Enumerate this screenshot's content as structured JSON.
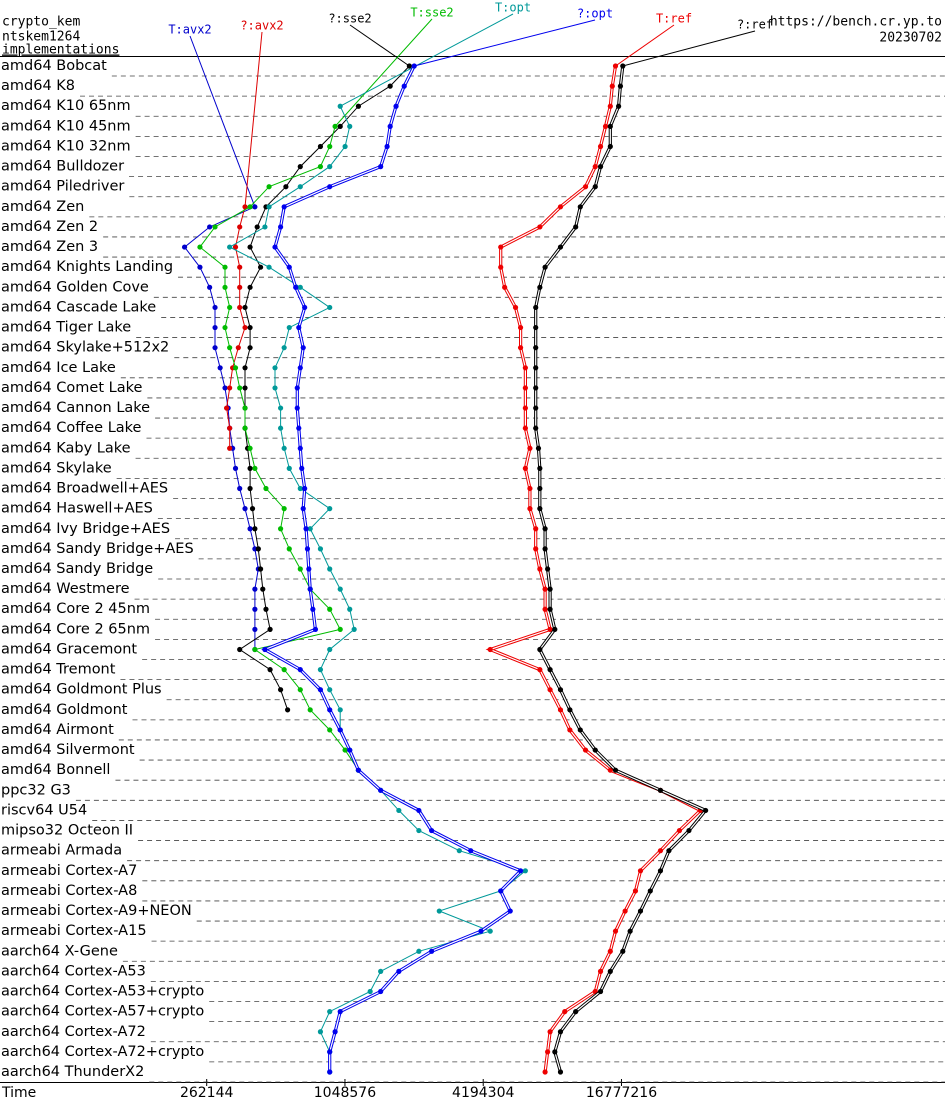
{
  "chart_data": {
    "type": "line",
    "orientation": "horizontal",
    "title": "crypto_kem",
    "subtitle": "ntskem1264",
    "legend_title": "implementations",
    "source": "https://bench.cr.yp.to",
    "date": "20230702",
    "x_label": "Time",
    "xscale": "log",
    "xlim": [
      33000,
      430000000
    ],
    "xticks": [
      262144,
      1048576,
      4194304,
      16777216
    ],
    "grid": true,
    "categories": [
      "amd64 Bobcat",
      "amd64 K8",
      "amd64 K10 65nm",
      "amd64 K10 45nm",
      "amd64 K10 32nm",
      "amd64 Bulldozer",
      "amd64 Piledriver",
      "amd64 Zen",
      "amd64 Zen 2",
      "amd64 Zen 3",
      "amd64 Knights Landing",
      "amd64 Golden Cove",
      "amd64 Cascade Lake",
      "amd64 Tiger Lake",
      "amd64 Skylake+512x2",
      "amd64 Ice Lake",
      "amd64 Comet Lake",
      "amd64 Cannon Lake",
      "amd64 Coffee Lake",
      "amd64 Kaby Lake",
      "amd64 Skylake",
      "amd64 Broadwell+AES",
      "amd64 Haswell+AES",
      "amd64 Ivy Bridge+AES",
      "amd64 Sandy Bridge+AES",
      "amd64 Sandy Bridge",
      "amd64 Westmere",
      "amd64 Core 2 45nm",
      "amd64 Core 2 65nm",
      "amd64 Gracemont",
      "amd64 Tremont",
      "amd64 Goldmont Plus",
      "amd64 Goldmont",
      "amd64 Airmont",
      "amd64 Silvermont",
      "amd64 Bonnell",
      "ppc32 G3",
      "riscv64 U54",
      "mipso32 Octeon II",
      "armeabi Armada",
      "armeabi Cortex-A7",
      "armeabi Cortex-A8",
      "armeabi Cortex-A9+NEON",
      "armeabi Cortex-A15",
      "aarch64 X-Gene",
      "aarch64 Cortex-A53",
      "aarch64 Cortex-A53+crypto",
      "aarch64 Cortex-A57+crypto",
      "aarch64 Cortex-A72",
      "aarch64 Cortex-A72+crypto",
      "aarch64 ThunderX2"
    ],
    "series": [
      {
        "name": "T:avx2",
        "color": "#0000cc",
        "double": false,
        "values": [
          null,
          null,
          null,
          null,
          null,
          null,
          null,
          425000,
          270000,
          210000,
          245000,
          270000,
          285000,
          285000,
          285000,
          300000,
          315000,
          325000,
          330000,
          340000,
          350000,
          365000,
          385000,
          405000,
          425000,
          440000,
          425000,
          425000,
          425000,
          425000,
          null,
          null,
          null,
          null,
          null,
          null,
          null,
          null,
          null,
          null,
          null,
          null,
          null,
          null,
          null,
          null,
          null,
          null,
          null,
          null,
          null
        ]
      },
      {
        "name": "?:avx2",
        "color": "#dd0000",
        "double": false,
        "values": [
          null,
          null,
          null,
          null,
          null,
          null,
          null,
          385000,
          365000,
          350000,
          365000,
          365000,
          365000,
          385000,
          360000,
          340000,
          330000,
          320000,
          330000,
          330000,
          null,
          null,
          null,
          null,
          null,
          null,
          null,
          null,
          null,
          null,
          null,
          null,
          null,
          null,
          null,
          null,
          null,
          null,
          null,
          null,
          null,
          null,
          null,
          null,
          null,
          null,
          null,
          null,
          null,
          null,
          null
        ]
      },
      {
        "name": "?:sse2",
        "color": "#000000",
        "double": false,
        "values": [
          2000000,
          1650000,
          1200000,
          1000000,
          820000,
          670000,
          580000,
          475000,
          435000,
          405000,
          450000,
          405000,
          385000,
          405000,
          405000,
          385000,
          385000,
          385000,
          385000,
          395000,
          405000,
          405000,
          415000,
          425000,
          440000,
          450000,
          460000,
          475000,
          495000,
          365000,
          495000,
          550000,
          590000,
          null,
          null,
          null,
          null,
          null,
          null,
          null,
          null,
          null,
          null,
          null,
          null,
          null,
          null,
          null,
          null,
          null,
          null
        ]
      },
      {
        "name": "T:sse2",
        "color": "#00bb00",
        "double": false,
        "values": [
          null,
          null,
          null,
          950000,
          900000,
          820000,
          490000,
          405000,
          285000,
          245000,
          315000,
          315000,
          330000,
          315000,
          330000,
          350000,
          365000,
          385000,
          385000,
          405000,
          425000,
          475000,
          570000,
          550000,
          600000,
          670000,
          740000,
          900000,
          1000000,
          425000,
          570000,
          670000,
          740000,
          900000,
          1050000,
          1200000,
          null,
          null,
          null,
          null,
          null,
          null,
          null,
          null,
          null,
          null,
          null,
          null,
          null,
          null,
          null
        ]
      },
      {
        "name": "T:opt",
        "color": "#009999",
        "double": false,
        "values": [
          null,
          null,
          1000000,
          1100000,
          1050000,
          900000,
          670000,
          490000,
          470000,
          330000,
          490000,
          670000,
          900000,
          600000,
          570000,
          520000,
          520000,
          550000,
          550000,
          570000,
          600000,
          670000,
          900000,
          740000,
          820000,
          900000,
          1000000,
          1100000,
          1150000,
          900000,
          820000,
          900000,
          1000000,
          1000000,
          1100000,
          1200000,
          1500000,
          1800000,
          2200000,
          3300000,
          6400000,
          5000000,
          2700000,
          4500000,
          2200000,
          1500000,
          1350000,
          900000,
          820000,
          900000,
          900000
        ]
      },
      {
        "name": "?:opt",
        "color": "#0000ee",
        "double": true,
        "values": [
          2100000,
          1900000,
          1750000,
          1650000,
          1600000,
          1500000,
          900000,
          570000,
          550000,
          520000,
          600000,
          640000,
          700000,
          660000,
          690000,
          670000,
          650000,
          650000,
          660000,
          670000,
          680000,
          700000,
          690000,
          710000,
          720000,
          730000,
          740000,
          760000,
          780000,
          470000,
          670000,
          820000,
          900000,
          1000000,
          1100000,
          1200000,
          1500000,
          2200000,
          2500000,
          3700000,
          6100000,
          5000000,
          5500000,
          4100000,
          2500000,
          1800000,
          1500000,
          1000000,
          950000,
          900000,
          900000
        ]
      },
      {
        "name": "T:ref",
        "color": "#ee0000",
        "double": true,
        "values": [
          15800000,
          15300000,
          15000000,
          14300000,
          13600000,
          12900000,
          11700000,
          9100000,
          7400000,
          5000000,
          5000000,
          5200000,
          5800000,
          6100000,
          6100000,
          6400000,
          6400000,
          6400000,
          6400000,
          6700000,
          6400000,
          6700000,
          6700000,
          7100000,
          7100000,
          7400000,
          7800000,
          7800000,
          8200000,
          4500000,
          7400000,
          8200000,
          9100000,
          10000000,
          11700000,
          15000000,
          24800000,
          37000000,
          30000000,
          24800000,
          20300000,
          19300000,
          17400000,
          15800000,
          15000000,
          13600000,
          12900000,
          9500000,
          8200000,
          8000000,
          7800000
        ]
      },
      {
        "name": "?:ref",
        "color": "#000000",
        "double": true,
        "values": [
          17000000,
          16600000,
          16300000,
          15000000,
          15000000,
          13600000,
          12900000,
          11100000,
          10600000,
          9100000,
          7800000,
          7400000,
          7100000,
          7100000,
          7100000,
          7100000,
          7100000,
          7100000,
          7100000,
          7300000,
          7400000,
          7400000,
          7400000,
          7800000,
          7800000,
          8000000,
          8200000,
          8200000,
          8600000,
          7400000,
          8200000,
          9100000,
          10000000,
          11100000,
          12900000,
          15800000,
          24800000,
          39000000,
          33000000,
          27000000,
          24800000,
          22400000,
          20300000,
          18300000,
          17000000,
          15000000,
          13600000,
          10600000,
          9100000,
          8600000,
          9100000
        ]
      }
    ]
  }
}
